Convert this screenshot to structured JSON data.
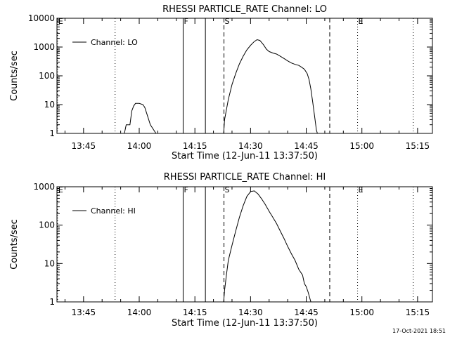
{
  "footer": {
    "timestamp": "17-Oct-2021 18:51"
  },
  "chart_data": [
    {
      "type": "line",
      "title": "RHESSI PARTICLE_RATE Channel: LO",
      "xlabel": "Start Time (12-Jun-11 13:37:50)",
      "ylabel": "Counts/sec",
      "y_scale": "log",
      "ylim": [
        1,
        10000
      ],
      "xlim": [
        "13:37:50",
        "15:19:00"
      ],
      "grid": false,
      "legend_position": "top-left",
      "x_ticks": [
        "13:45",
        "14:00",
        "14:15",
        "14:30",
        "14:45",
        "15:00",
        "15:15"
      ],
      "y_ticks": [
        "1",
        "10",
        "100",
        "1000",
        "10000"
      ],
      "markers": [
        {
          "label": "E",
          "time": "13:38:00",
          "style": "dotted"
        },
        {
          "label": "",
          "time": "13:53:30",
          "style": "dotted"
        },
        {
          "label": "F",
          "time": "14:11:50",
          "style": "solid"
        },
        {
          "label": "",
          "time": "14:17:50",
          "style": "solid"
        },
        {
          "label": "S",
          "time": "14:22:50",
          "style": "dashed"
        },
        {
          "label": "",
          "time": "14:51:20",
          "style": "dashed"
        },
        {
          "label": "E",
          "time": "14:58:50",
          "style": "dotted"
        },
        {
          "label": "",
          "time": "15:13:50",
          "style": "dotted"
        }
      ],
      "series": [
        {
          "name": "Channel: LO",
          "segments": [
            [
              [
                "13:56:00",
                1
              ],
              [
                "13:56:30",
                2
              ],
              [
                "13:57:30",
                2
              ],
              [
                "13:58:00",
                6
              ],
              [
                "13:58:30",
                9
              ],
              [
                "13:59:00",
                11
              ],
              [
                "14:00:00",
                11
              ],
              [
                "14:01:00",
                10
              ],
              [
                "14:01:30",
                8
              ],
              [
                "14:02:00",
                5
              ],
              [
                "14:03:00",
                2
              ],
              [
                "14:04:30",
                1
              ]
            ],
            [
              [
                "14:22:45",
                1
              ],
              [
                "14:23:00",
                3
              ],
              [
                "14:24:00",
                15
              ],
              [
                "14:25:00",
                50
              ],
              [
                "14:26:00",
                120
              ],
              [
                "14:27:00",
                260
              ],
              [
                "14:28:00",
                480
              ],
              [
                "14:29:00",
                800
              ],
              [
                "14:30:00",
                1150
              ],
              [
                "14:31:00",
                1550
              ],
              [
                "14:31:45",
                1800
              ],
              [
                "14:32:30",
                1700
              ],
              [
                "14:33:30",
                1200
              ],
              [
                "14:34:15",
                850
              ],
              [
                "14:35:00",
                700
              ],
              [
                "14:36:00",
                620
              ],
              [
                "14:37:00",
                570
              ],
              [
                "14:38:00",
                480
              ],
              [
                "14:39:00",
                400
              ],
              [
                "14:40:00",
                330
              ],
              [
                "14:41:00",
                280
              ],
              [
                "14:42:00",
                250
              ],
              [
                "14:43:00",
                230
              ],
              [
                "14:43:45",
                200
              ],
              [
                "14:44:30",
                170
              ],
              [
                "14:45:15",
                120
              ],
              [
                "14:45:45",
                75
              ],
              [
                "14:46:15",
                35
              ],
              [
                "14:46:45",
                12
              ],
              [
                "14:47:15",
                4
              ],
              [
                "14:47:45",
                1.3
              ],
              [
                "14:48:00",
                1
              ]
            ]
          ]
        }
      ]
    },
    {
      "type": "line",
      "title": "RHESSI PARTICLE_RATE Channel: HI",
      "xlabel": "Start Time (12-Jun-11 13:37:50)",
      "ylabel": "Counts/sec",
      "y_scale": "log",
      "ylim": [
        1,
        1000
      ],
      "xlim": [
        "13:37:50",
        "15:19:00"
      ],
      "grid": false,
      "legend_position": "top-left",
      "x_ticks": [
        "13:45",
        "14:00",
        "14:15",
        "14:30",
        "14:45",
        "15:00",
        "15:15"
      ],
      "y_ticks": [
        "1",
        "10",
        "100",
        "1000"
      ],
      "markers": [
        {
          "label": "E",
          "time": "13:38:00",
          "style": "dotted"
        },
        {
          "label": "",
          "time": "13:53:30",
          "style": "dotted"
        },
        {
          "label": "F",
          "time": "14:11:50",
          "style": "solid"
        },
        {
          "label": "",
          "time": "14:17:50",
          "style": "solid"
        },
        {
          "label": "S",
          "time": "14:22:50",
          "style": "dashed"
        },
        {
          "label": "",
          "time": "14:51:20",
          "style": "dashed"
        },
        {
          "label": "E",
          "time": "14:58:50",
          "style": "dotted"
        },
        {
          "label": "",
          "time": "15:13:50",
          "style": "dotted"
        }
      ],
      "series": [
        {
          "name": "Channel: HI",
          "segments": [
            [
              [
                "14:22:45",
                1
              ],
              [
                "14:23:00",
                2
              ],
              [
                "14:23:30",
                5
              ],
              [
                "14:24:00",
                12
              ],
              [
                "14:25:00",
                30
              ],
              [
                "14:26:00",
                70
              ],
              [
                "14:27:00",
                160
              ],
              [
                "14:28:00",
                320
              ],
              [
                "14:29:00",
                560
              ],
              [
                "14:30:00",
                750
              ],
              [
                "14:31:00",
                780
              ],
              [
                "14:32:00",
                650
              ],
              [
                "14:33:00",
                480
              ],
              [
                "14:34:00",
                340
              ],
              [
                "14:35:00",
                230
              ],
              [
                "14:36:00",
                160
              ],
              [
                "14:37:00",
                110
              ],
              [
                "14:38:00",
                70
              ],
              [
                "14:39:00",
                45
              ],
              [
                "14:40:00",
                28
              ],
              [
                "14:41:00",
                18
              ],
              [
                "14:42:00",
                12
              ],
              [
                "14:43:00",
                7
              ],
              [
                "14:44:00",
                5
              ],
              [
                "14:44:30",
                3
              ],
              [
                "14:45:00",
                2.5
              ],
              [
                "14:45:30",
                1.8
              ],
              [
                "14:46:15",
                1
              ]
            ]
          ]
        }
      ]
    }
  ]
}
